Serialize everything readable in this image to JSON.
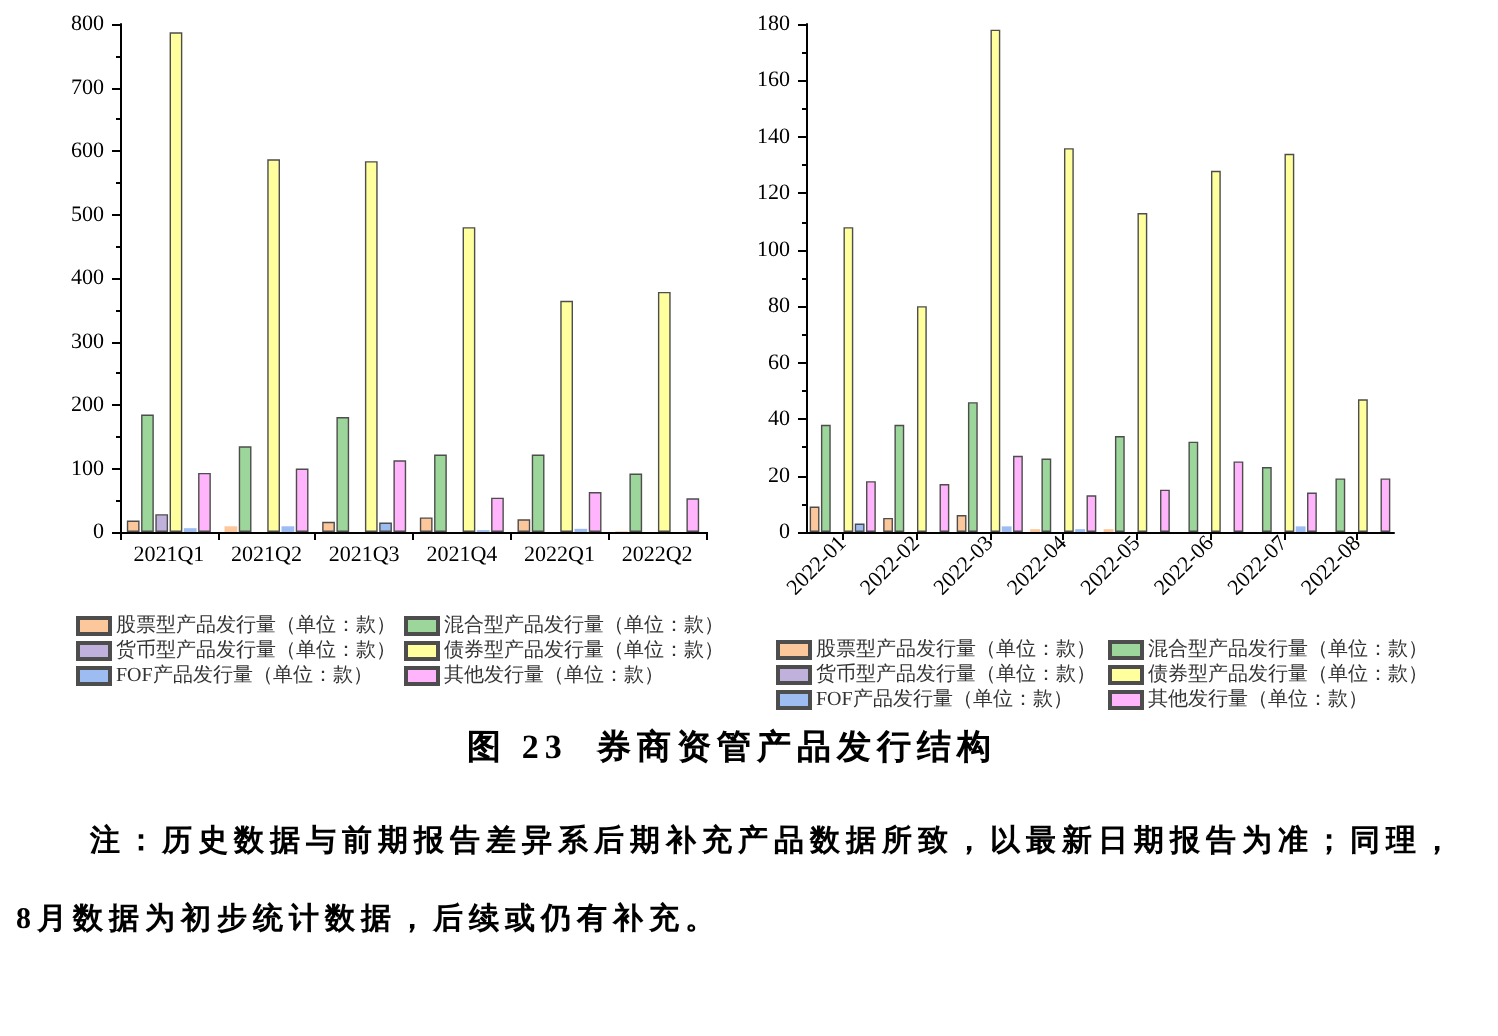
{
  "chart_data": [
    {
      "type": "bar",
      "title": "图 23  券商资管产品发行结构",
      "annotations": [
        "注：历史数据与前期报告差异系后期补充产品数据所致，以最新日期报告为准；同理，8月数据为初步统计数据，后续或仍有补充。"
      ],
      "categories": [
        "2021Q1",
        "2021Q2",
        "2021Q3",
        "2021Q4",
        "2022Q1",
        "2022Q2"
      ],
      "series": [
        {
          "name": "股票型产品发行量（单位：款）",
          "color": "#fcc79a",
          "values": [
            18,
            9,
            16,
            23,
            20,
            1
          ]
        },
        {
          "name": "混合型产品发行量（单位：款）",
          "color": "#9dd69b",
          "values": [
            185,
            135,
            181,
            122,
            122,
            92
          ]
        },
        {
          "name": "货币型产品发行量（单位：款）",
          "color": "#bfb0dc",
          "values": [
            28,
            0,
            0,
            0,
            0,
            0
          ]
        },
        {
          "name": "债券型产品发行量（单位：款）",
          "color": "#ffff9e",
          "values": [
            787,
            587,
            584,
            480,
            364,
            378
          ]
        },
        {
          "name": "FOF产品发行量（单位：款）",
          "color": "#9cbcf2",
          "values": [
            6,
            9,
            15,
            3,
            5,
            0
          ]
        },
        {
          "name": "其他发行量（单位：款）",
          "color": "#ffb4fc",
          "values": [
            93,
            100,
            113,
            54,
            63,
            53
          ]
        }
      ],
      "ylim": [
        0,
        800
      ],
      "yticks": [
        0,
        100,
        200,
        300,
        400,
        500,
        600,
        700,
        800
      ],
      "grid": false,
      "legend": "bottom"
    },
    {
      "type": "bar",
      "categories": [
        "2022-01",
        "2022-02",
        "2022-03",
        "2022-04",
        "2022-05",
        "2022-06",
        "2022-07",
        "2022-08"
      ],
      "series": [
        {
          "name": "股票型产品发行量（单位：款）",
          "color": "#fcc79a",
          "values": [
            9,
            5,
            6,
            1,
            1,
            0,
            0,
            0
          ]
        },
        {
          "name": "混合型产品发行量（单位：款）",
          "color": "#9dd69b",
          "values": [
            38,
            38,
            46,
            26,
            34,
            32,
            23,
            19
          ]
        },
        {
          "name": "货币型产品发行量（单位：款）",
          "color": "#bfb0dc",
          "values": [
            0,
            0,
            0,
            0,
            0,
            0,
            0,
            0
          ]
        },
        {
          "name": "债券型产品发行量（单位：款）",
          "color": "#ffff9e",
          "values": [
            108,
            80,
            178,
            136,
            113,
            128,
            134,
            47
          ]
        },
        {
          "name": "FOF产品发行量（单位：款）",
          "color": "#9cbcf2",
          "values": [
            3,
            0,
            2,
            1,
            0,
            0,
            2,
            0
          ]
        },
        {
          "name": "其他发行量（单位：款）",
          "color": "#ffb4fc",
          "values": [
            18,
            17,
            27,
            13,
            15,
            25,
            14,
            19
          ]
        }
      ],
      "ylim": [
        0,
        180
      ],
      "yticks": [
        0,
        20,
        40,
        60,
        80,
        100,
        120,
        140,
        160,
        180
      ],
      "grid": false,
      "legend": "bottom"
    }
  ]
}
